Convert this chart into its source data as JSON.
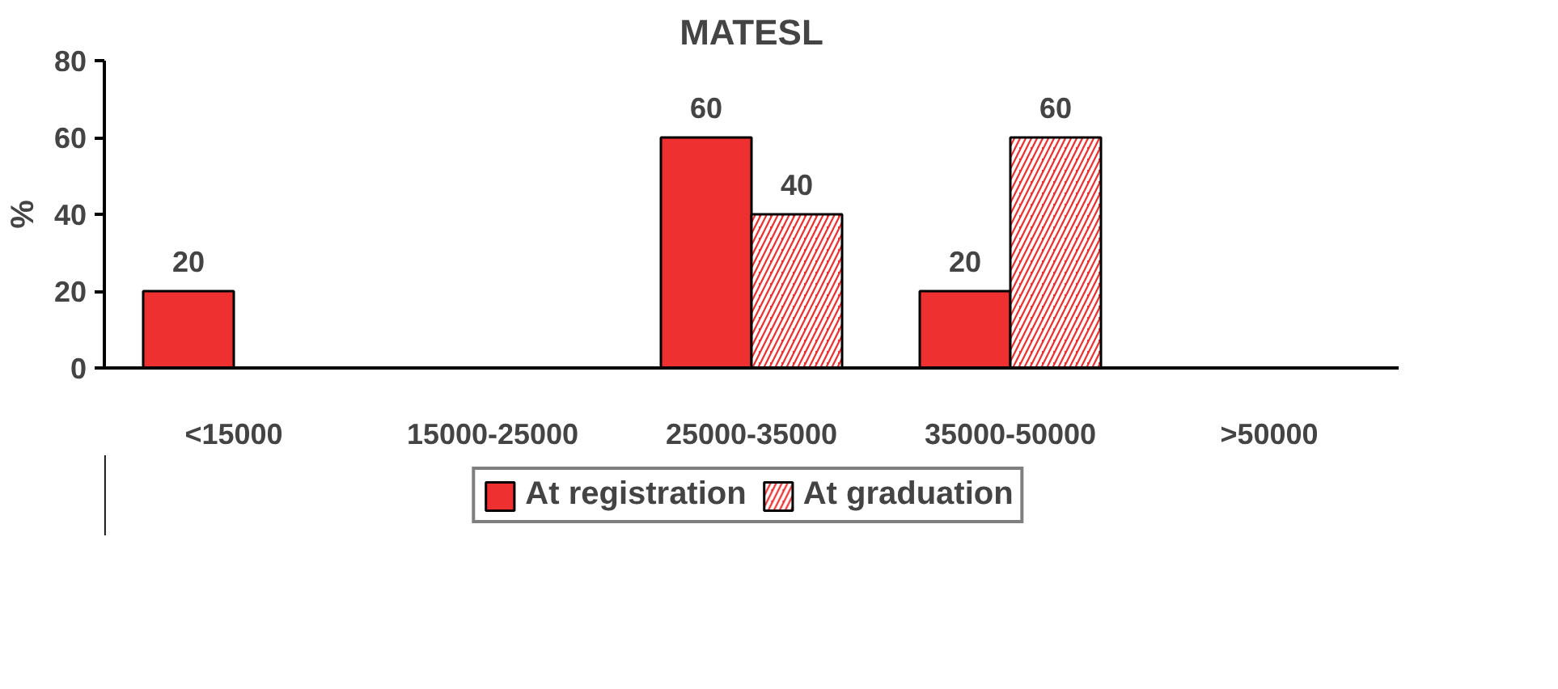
{
  "chart_data": {
    "type": "bar",
    "title": "MATESL",
    "ylabel": "%",
    "categories": [
      "<15000",
      "15000-25000",
      "25000-35000",
      "35000-50000",
      ">50000"
    ],
    "series": [
      {
        "name": "At registration",
        "color": "#ee3030",
        "values": [
          20,
          null,
          60,
          20,
          null
        ],
        "value_labels": [
          "20",
          null,
          "60",
          "20",
          null
        ]
      },
      {
        "name": "At graduation",
        "color": "#ee3030",
        "values": [
          null,
          null,
          40,
          60,
          null
        ],
        "value_labels": [
          null,
          null,
          "40",
          "60",
          null
        ]
      }
    ],
    "ylim": [
      0,
      80
    ],
    "yticks": [
      0,
      20,
      40,
      60,
      80
    ],
    "grid": false,
    "legend": "bottom"
  }
}
